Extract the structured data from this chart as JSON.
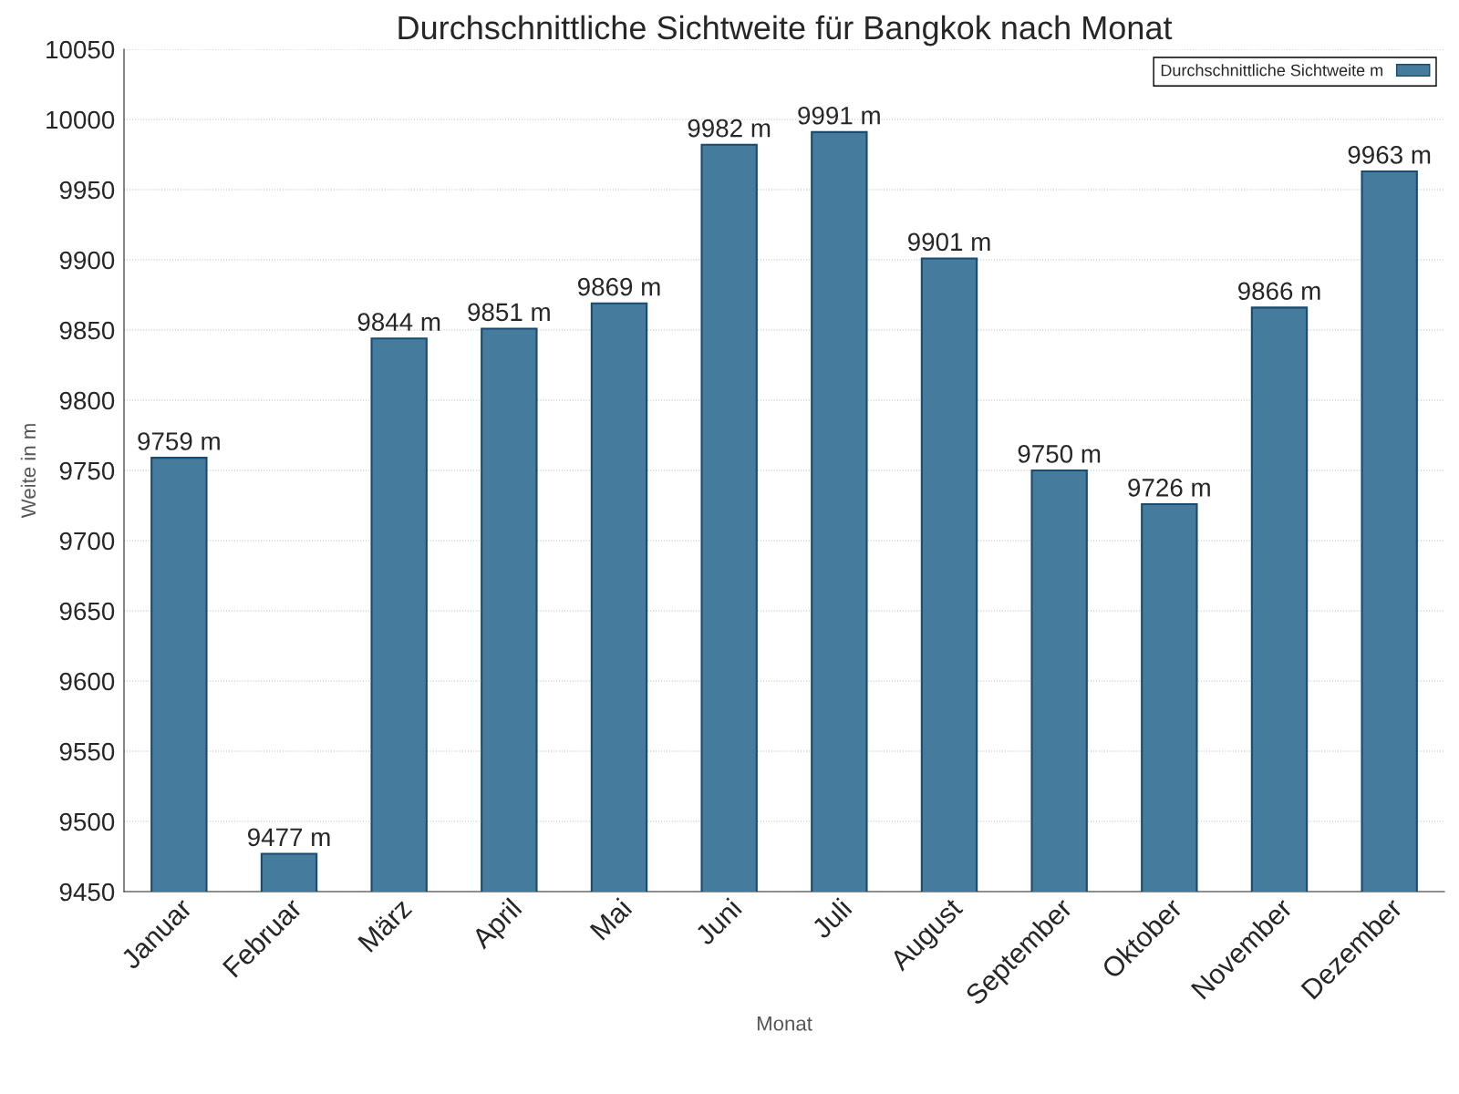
{
  "chart_data": {
    "type": "bar",
    "title": "Durchschnittliche Sichtweite für Bangkok nach Monat",
    "xlabel": "Monat",
    "ylabel": "Weite in m",
    "categories": [
      "Januar",
      "Februar",
      "März",
      "April",
      "Mai",
      "Juni",
      "Juli",
      "August",
      "September",
      "Oktober",
      "November",
      "Dezember"
    ],
    "series": [
      {
        "name": "Durchschnittliche Sichtweite m",
        "color": "#457b9d",
        "values": [
          9759,
          9477,
          9844,
          9851,
          9869,
          9982,
          9991,
          9901,
          9750,
          9726,
          9866,
          9963
        ],
        "value_labels": [
          "9759 m",
          "9477 m",
          "9844 m",
          "9851 m",
          "9869 m",
          "9982 m",
          "9991 m",
          "9901 m",
          "9750 m",
          "9726 m",
          "9866 m",
          "9963 m"
        ]
      }
    ],
    "ylim": [
      9450,
      10050
    ],
    "yticks": [
      9450,
      9500,
      9550,
      9600,
      9650,
      9700,
      9750,
      9800,
      9850,
      9900,
      9950,
      10000,
      10050
    ],
    "grid": "y",
    "legend": "top right"
  }
}
